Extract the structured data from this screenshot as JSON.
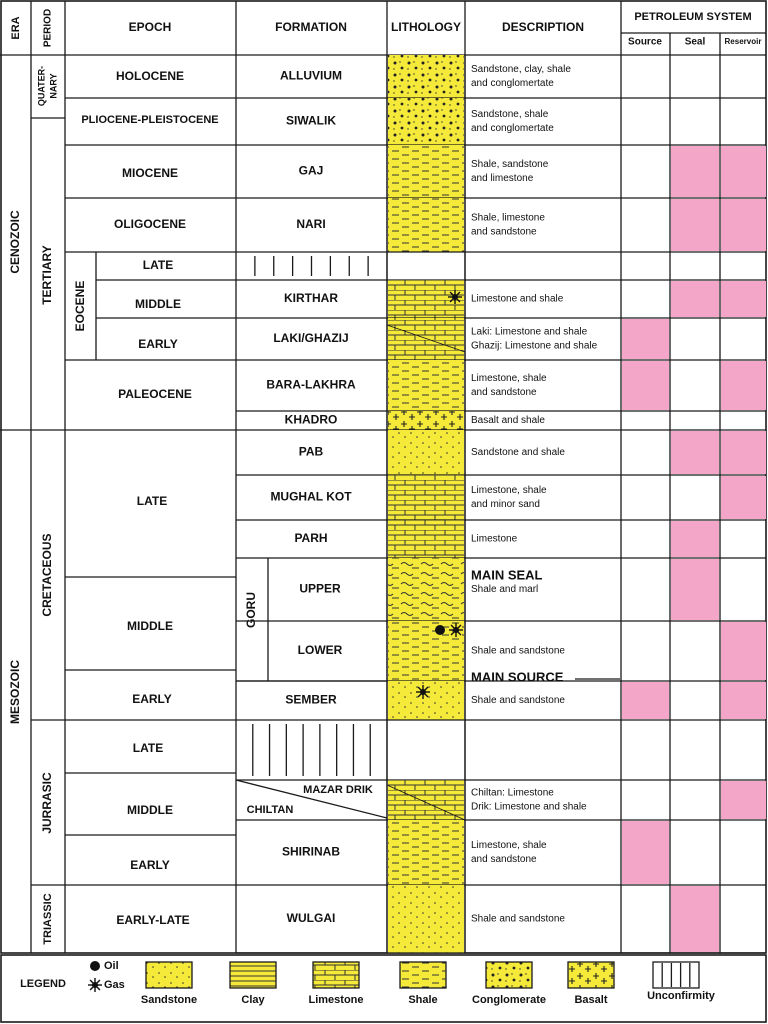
{
  "headers": {
    "era": "ERA",
    "period": "PERIOD",
    "epoch": "EPOCH",
    "formation": "FORMATION",
    "lithology": "LITHOLOGY",
    "description": "DESCRIPTION",
    "petroleum_system": "PETROLEUM SYSTEM",
    "source": "Source",
    "seal": "Seal",
    "reservoir": "Reservoir"
  },
  "eras": [
    "CENOZOIC",
    "MESOZOIC"
  ],
  "periods": {
    "quaternary_1": "QUATER-",
    "quaternary_2": "NARY",
    "tertiary": "TERTIARY",
    "cretaceous": "CRETACEOUS",
    "jurassic": "JURRASIC",
    "triassic": "TRIASSIC"
  },
  "epochs": {
    "holocene": "HOLOCENE",
    "plio_pleistocene": "PLIOCENE-PLEISTOCENE",
    "miocene": "MIOCENE",
    "oligocene": "OLIGOCENE",
    "eocene": "EOCENE",
    "eocene_late": "LATE",
    "eocene_middle": "MIDDLE",
    "eocene_early": "EARLY",
    "paleocene": "PALEOCENE",
    "cret_late": "LATE",
    "cret_middle": "MIDDLE",
    "cret_early": "EARLY",
    "jur_late": "LATE",
    "jur_middle": "MIDDLE",
    "jur_early": "EARLY",
    "tri": "EARLY-LATE"
  },
  "formations": {
    "alluvium": "ALLUVIUM",
    "siwalik": "SIWALIK",
    "gaj": "GAJ",
    "nari": "NARI",
    "kirthar": "KIRTHAR",
    "laki": "LAKI/GHAZIJ",
    "bara": "BARA-LAKHRA",
    "khadro": "KHADRO",
    "pab": "PAB",
    "mughal": "MUGHAL KOT",
    "parh": "PARH",
    "goru": "GORU",
    "goru_upper": "UPPER",
    "goru_lower": "LOWER",
    "sember": "SEMBER",
    "mazar": "MAZAR DRIK",
    "chiltan": "CHILTAN",
    "shirinab": "SHIRINAB",
    "wulgai": "WULGAI"
  },
  "descriptions": {
    "alluvium_1": "Sandstone, clay, shale",
    "alluvium_2": "and conglomertate",
    "siwalik_1": "Sandstone, shale",
    "siwalik_2": "and conglomertate",
    "gaj_1": "Shale, sandstone",
    "gaj_2": "and limestone",
    "nari_1": "Shale, limestone",
    "nari_2": "and sandstone",
    "kirthar": "Limestone and shale",
    "laki_1": "Laki:  Limestone and shale",
    "laki_2": "Ghazij:  Limestone and shale",
    "bara_1": "Limestone, shale",
    "bara_2": "and sandstone",
    "khadro": "Basalt and shale",
    "pab": "Sandstone and shale",
    "mughal_1": "Limestone, shale",
    "mughal_2": "and minor sand",
    "parh": "Limestone",
    "main_seal": "MAIN SEAL",
    "goru_upper": "Shale and marl",
    "goru_lower": "Shale and sandstone",
    "main_source": "MAIN SOURCE",
    "sember": "Shale and sandstone",
    "mazar_1": "Chiltan: Limestone",
    "mazar_2": "Drik: Limestone and shale",
    "shirinab_1": "Limestone, shale",
    "shirinab_2": "and sandstone",
    "wulgai": "Shale and sandstone"
  },
  "legend": {
    "title": "LEGEND",
    "oil": "Oil",
    "gas": "Gas",
    "sandstone": "Sandstone",
    "clay": "Clay",
    "limestone": "Limestone",
    "shale": "Shale",
    "conglomerate": "Conglomerate",
    "basalt": "Basalt",
    "unconformity": "Unconfirmity"
  },
  "colors": {
    "lithology_fill": "#f5ea3a",
    "petroleum_fill": "#f4a6c8",
    "line": "#1a1a1a"
  }
}
